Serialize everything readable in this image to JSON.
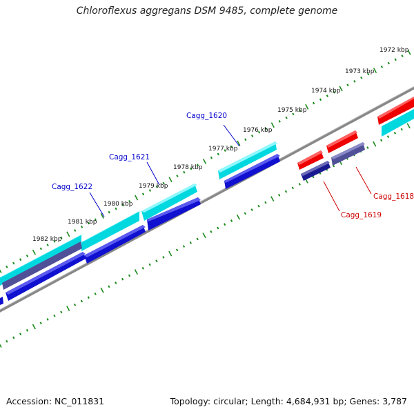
{
  "title": "Chloroflexus aggregans DSM 9485, complete genome",
  "accession_text": "Accession: NC_011831",
  "summary_text": "Topology: circular; Length: 4,684,931 bp; Genes: 3,787",
  "colors": {
    "forward_cds": "#00d8e0",
    "forward_cds_top": "#7ff8ff",
    "reverse_cds": "#1010d0",
    "reverse_cds_top": "#4a4af0",
    "other_gene": "#505098",
    "highlight": "#ee0000",
    "backbone": "#888888",
    "ticks": "#1a8a1a",
    "label_blue": "#0000cc",
    "label_red": "#cc0000"
  },
  "kbp_labels": [
    "1972 kbp",
    "1973 kbp",
    "1974 kbp",
    "1975 kbp",
    "1976 kbp",
    "1977 kbp",
    "1978 kbp",
    "1979 kbp",
    "1980 kbp",
    "1981 kbp",
    "1982 kbp"
  ],
  "gene_labels": [
    {
      "text": "Cagg_1620",
      "color": "blue"
    },
    {
      "text": "Cagg_1621",
      "color": "blue"
    },
    {
      "text": "Cagg_1622",
      "color": "blue"
    },
    {
      "text": "Cagg_1618",
      "color": "red"
    },
    {
      "text": "Cagg_1619",
      "color": "red"
    }
  ]
}
